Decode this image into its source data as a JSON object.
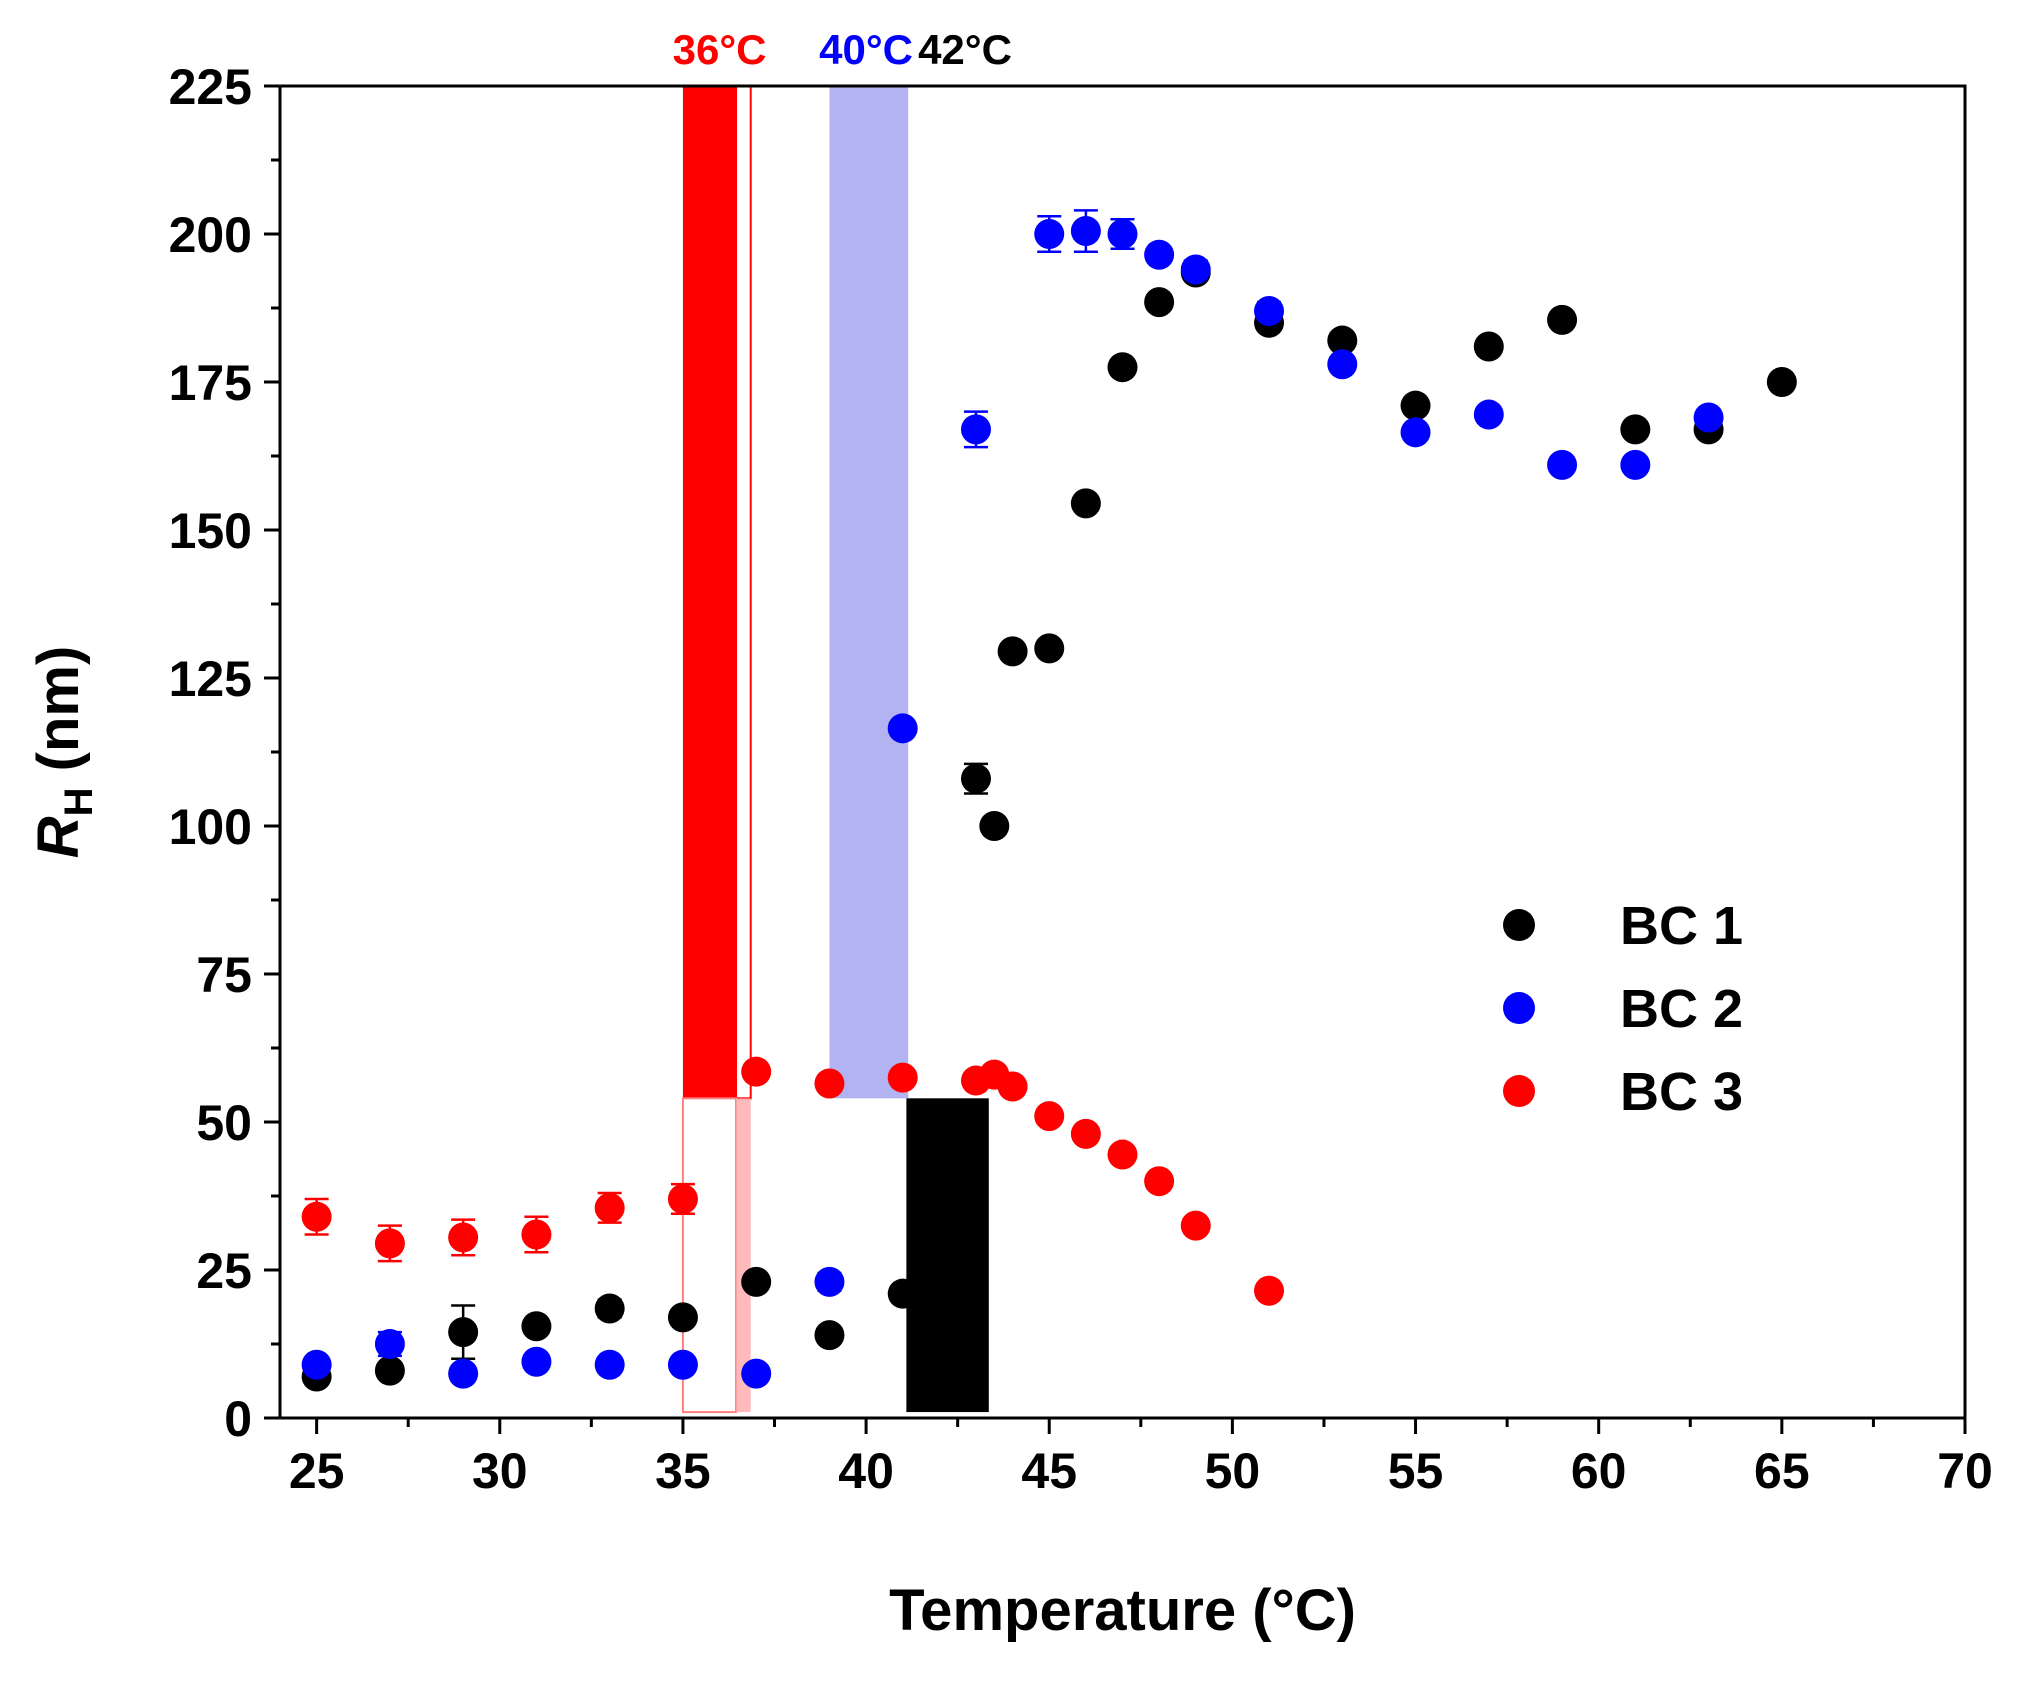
{
  "chart_data": {
    "type": "scatter",
    "title": "",
    "xlabel": "Temperature (°C)",
    "ylabel_main": "R",
    "ylabel_sub": "H",
    "ylabel_rest": " (nm)",
    "xlim": [
      24,
      70
    ],
    "ylim": [
      0,
      225
    ],
    "xticks": [
      25,
      30,
      35,
      40,
      45,
      50,
      55,
      60,
      65,
      70
    ],
    "yticks": [
      0,
      25,
      50,
      75,
      100,
      125,
      150,
      175,
      200,
      225
    ],
    "legend_position": "center-right",
    "series": [
      {
        "name": "BC 1",
        "color": "#000000",
        "points": [
          {
            "x": 25,
            "y": 7,
            "err": 1
          },
          {
            "x": 27,
            "y": 8,
            "err": 1
          },
          {
            "x": 29,
            "y": 14.5,
            "err": 4.5
          },
          {
            "x": 31,
            "y": 15.5,
            "err": 1
          },
          {
            "x": 33,
            "y": 18.5,
            "err": 1.5
          },
          {
            "x": 35,
            "y": 17,
            "err": 1
          },
          {
            "x": 37,
            "y": 23,
            "err": 1
          },
          {
            "x": 39,
            "y": 14,
            "err": 1
          },
          {
            "x": 41,
            "y": 21,
            "err": 1
          },
          {
            "x": 43,
            "y": 108,
            "err": 2.5
          },
          {
            "x": 43.5,
            "y": 100,
            "err": 1
          },
          {
            "x": 44,
            "y": 129.5,
            "err": 1
          },
          {
            "x": 45,
            "y": 130,
            "err": 1
          },
          {
            "x": 46,
            "y": 154.5,
            "err": 1
          },
          {
            "x": 47,
            "y": 177.5,
            "err": 1
          },
          {
            "x": 48,
            "y": 188.5,
            "err": 1
          },
          {
            "x": 49,
            "y": 193.5,
            "err": 1
          },
          {
            "x": 51,
            "y": 185,
            "err": 1
          },
          {
            "x": 53,
            "y": 182,
            "err": 1
          },
          {
            "x": 55,
            "y": 171,
            "err": 1
          },
          {
            "x": 57,
            "y": 181,
            "err": 1
          },
          {
            "x": 59,
            "y": 185.5,
            "err": 1
          },
          {
            "x": 61,
            "y": 167,
            "err": 1
          },
          {
            "x": 63,
            "y": 167,
            "err": 1
          },
          {
            "x": 65,
            "y": 175,
            "err": 1
          }
        ]
      },
      {
        "name": "BC 2",
        "color": "#0000ff",
        "points": [
          {
            "x": 25,
            "y": 9,
            "err": 1
          },
          {
            "x": 27,
            "y": 12.5,
            "err": 2
          },
          {
            "x": 29,
            "y": 7.5,
            "err": 1
          },
          {
            "x": 31,
            "y": 9.5,
            "err": 1
          },
          {
            "x": 33,
            "y": 9,
            "err": 1
          },
          {
            "x": 35,
            "y": 9,
            "err": 1
          },
          {
            "x": 37,
            "y": 7.5,
            "err": 1
          },
          {
            "x": 39,
            "y": 23,
            "err": 1.5
          },
          {
            "x": 41,
            "y": 116.5,
            "err": 1
          },
          {
            "x": 43,
            "y": 167,
            "err": 3
          },
          {
            "x": 45,
            "y": 200,
            "err": 3
          },
          {
            "x": 46,
            "y": 200.5,
            "err": 3.5
          },
          {
            "x": 47,
            "y": 200,
            "err": 2.5
          },
          {
            "x": 48,
            "y": 196.5,
            "err": 1
          },
          {
            "x": 49,
            "y": 194,
            "err": 1.5
          },
          {
            "x": 51,
            "y": 187,
            "err": 1.5
          },
          {
            "x": 53,
            "y": 178,
            "err": 1
          },
          {
            "x": 55,
            "y": 166.5,
            "err": 1
          },
          {
            "x": 57,
            "y": 169.5,
            "err": 1
          },
          {
            "x": 59,
            "y": 161,
            "err": 1
          },
          {
            "x": 61,
            "y": 161,
            "err": 1
          },
          {
            "x": 63,
            "y": 169,
            "err": 1
          }
        ]
      },
      {
        "name": "BC 3",
        "color": "#ff0000",
        "points": [
          {
            "x": 25,
            "y": 34,
            "err": 3
          },
          {
            "x": 27,
            "y": 29.5,
            "err": 3
          },
          {
            "x": 29,
            "y": 30.5,
            "err": 3
          },
          {
            "x": 31,
            "y": 31,
            "err": 3
          },
          {
            "x": 33,
            "y": 35.5,
            "err": 2.5
          },
          {
            "x": 35,
            "y": 37,
            "err": 2.5
          },
          {
            "x": 37,
            "y": 58.5,
            "err": 1
          },
          {
            "x": 39,
            "y": 56.5,
            "err": 1
          },
          {
            "x": 41,
            "y": 57.5,
            "err": 1
          },
          {
            "x": 43,
            "y": 57,
            "err": 1
          },
          {
            "x": 43.5,
            "y": 58,
            "err": 1
          },
          {
            "x": 44,
            "y": 56,
            "err": 1
          },
          {
            "x": 45,
            "y": 51,
            "err": 1
          },
          {
            "x": 46,
            "y": 48,
            "err": 1
          },
          {
            "x": 47,
            "y": 44.5,
            "err": 1
          },
          {
            "x": 48,
            "y": 40,
            "err": 1
          },
          {
            "x": 49,
            "y": 32.5,
            "err": 1
          },
          {
            "x": 51,
            "y": 21.5,
            "err": 1
          }
        ]
      }
    ],
    "annotations": [
      {
        "text": "36°C",
        "color": "#ff0000",
        "x": 36
      },
      {
        "text": "40°C",
        "color": "#0000ff",
        "x": 40
      },
      {
        "text": "42°C",
        "color": "#000000",
        "x": 42.7
      }
    ],
    "bands": [
      {
        "name": "band-36-red-solid",
        "x0": 35,
        "x1": 36.45,
        "y0": 54,
        "y1": 225,
        "fill": "#ff0000",
        "opacity": 1
      },
      {
        "name": "band-36-red-outline-upper",
        "x0": 36.45,
        "x1": 36.85,
        "y0": 54,
        "y1": 225,
        "fill": "none",
        "stroke": "#ff0000"
      },
      {
        "name": "band-36-red-outline-lower",
        "x0": 35,
        "x1": 36.45,
        "y0": 1,
        "y1": 54,
        "fill": "none",
        "stroke": "#ff8080"
      },
      {
        "name": "band-36-red-hatched-lower",
        "x0": 36.45,
        "x1": 36.85,
        "y0": 1,
        "y1": 54,
        "fill": "#ffaaaa",
        "opacity": 0.8
      },
      {
        "name": "band-40-blue",
        "x0": 39,
        "x1": 41.15,
        "y0": 54,
        "y1": 225,
        "fill": "#9999ee",
        "opacity": 0.75
      },
      {
        "name": "band-42-black",
        "x0": 41.1,
        "x1": 43.35,
        "y0": 1,
        "y1": 54,
        "fill": "#000000",
        "opacity": 1
      }
    ]
  }
}
